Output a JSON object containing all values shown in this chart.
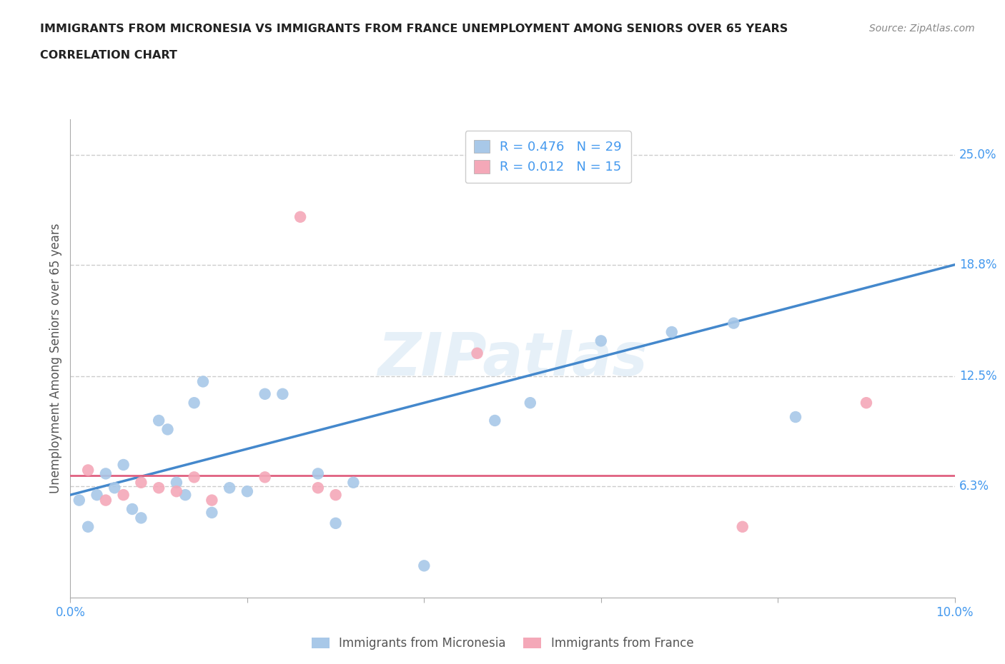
{
  "title_line1": "IMMIGRANTS FROM MICRONESIA VS IMMIGRANTS FROM FRANCE UNEMPLOYMENT AMONG SENIORS OVER 65 YEARS",
  "title_line2": "CORRELATION CHART",
  "source": "Source: ZipAtlas.com",
  "ylabel": "Unemployment Among Seniors over 65 years",
  "xlim": [
    0,
    0.1
  ],
  "ylim": [
    0,
    0.27
  ],
  "xticks": [
    0.0,
    0.02,
    0.04,
    0.06,
    0.08,
    0.1
  ],
  "xticklabels": [
    "0.0%",
    "",
    "",
    "",
    "",
    "10.0%"
  ],
  "ytick_positions": [
    0.063,
    0.125,
    0.188,
    0.25
  ],
  "ytick_labels": [
    "6.3%",
    "12.5%",
    "18.8%",
    "25.0%"
  ],
  "blue_color": "#a8c8e8",
  "pink_color": "#f4a8b8",
  "blue_line_color": "#4488cc",
  "pink_line_color": "#e06080",
  "grid_color": "#cccccc",
  "text_color": "#4499ee",
  "title_color": "#222222",
  "micronesia_R": 0.476,
  "micronesia_N": 29,
  "france_R": 0.012,
  "france_N": 15,
  "micronesia_x": [
    0.001,
    0.002,
    0.003,
    0.004,
    0.005,
    0.006,
    0.007,
    0.008,
    0.01,
    0.011,
    0.012,
    0.013,
    0.014,
    0.015,
    0.016,
    0.018,
    0.02,
    0.022,
    0.024,
    0.028,
    0.03,
    0.032,
    0.04,
    0.048,
    0.052,
    0.06,
    0.068,
    0.075,
    0.082
  ],
  "micronesia_y": [
    0.055,
    0.04,
    0.058,
    0.07,
    0.062,
    0.075,
    0.05,
    0.045,
    0.1,
    0.095,
    0.065,
    0.058,
    0.11,
    0.122,
    0.048,
    0.062,
    0.06,
    0.115,
    0.115,
    0.07,
    0.042,
    0.065,
    0.018,
    0.1,
    0.11,
    0.145,
    0.15,
    0.155,
    0.102
  ],
  "france_x": [
    0.002,
    0.004,
    0.006,
    0.008,
    0.01,
    0.012,
    0.014,
    0.016,
    0.022,
    0.026,
    0.028,
    0.03,
    0.046,
    0.076,
    0.09
  ],
  "france_y": [
    0.072,
    0.055,
    0.058,
    0.065,
    0.062,
    0.06,
    0.068,
    0.055,
    0.068,
    0.215,
    0.062,
    0.058,
    0.138,
    0.04,
    0.11
  ],
  "blue_trend_x": [
    0.0,
    0.1
  ],
  "blue_trend_y": [
    0.058,
    0.188
  ],
  "pink_trend_y": 0.069
}
